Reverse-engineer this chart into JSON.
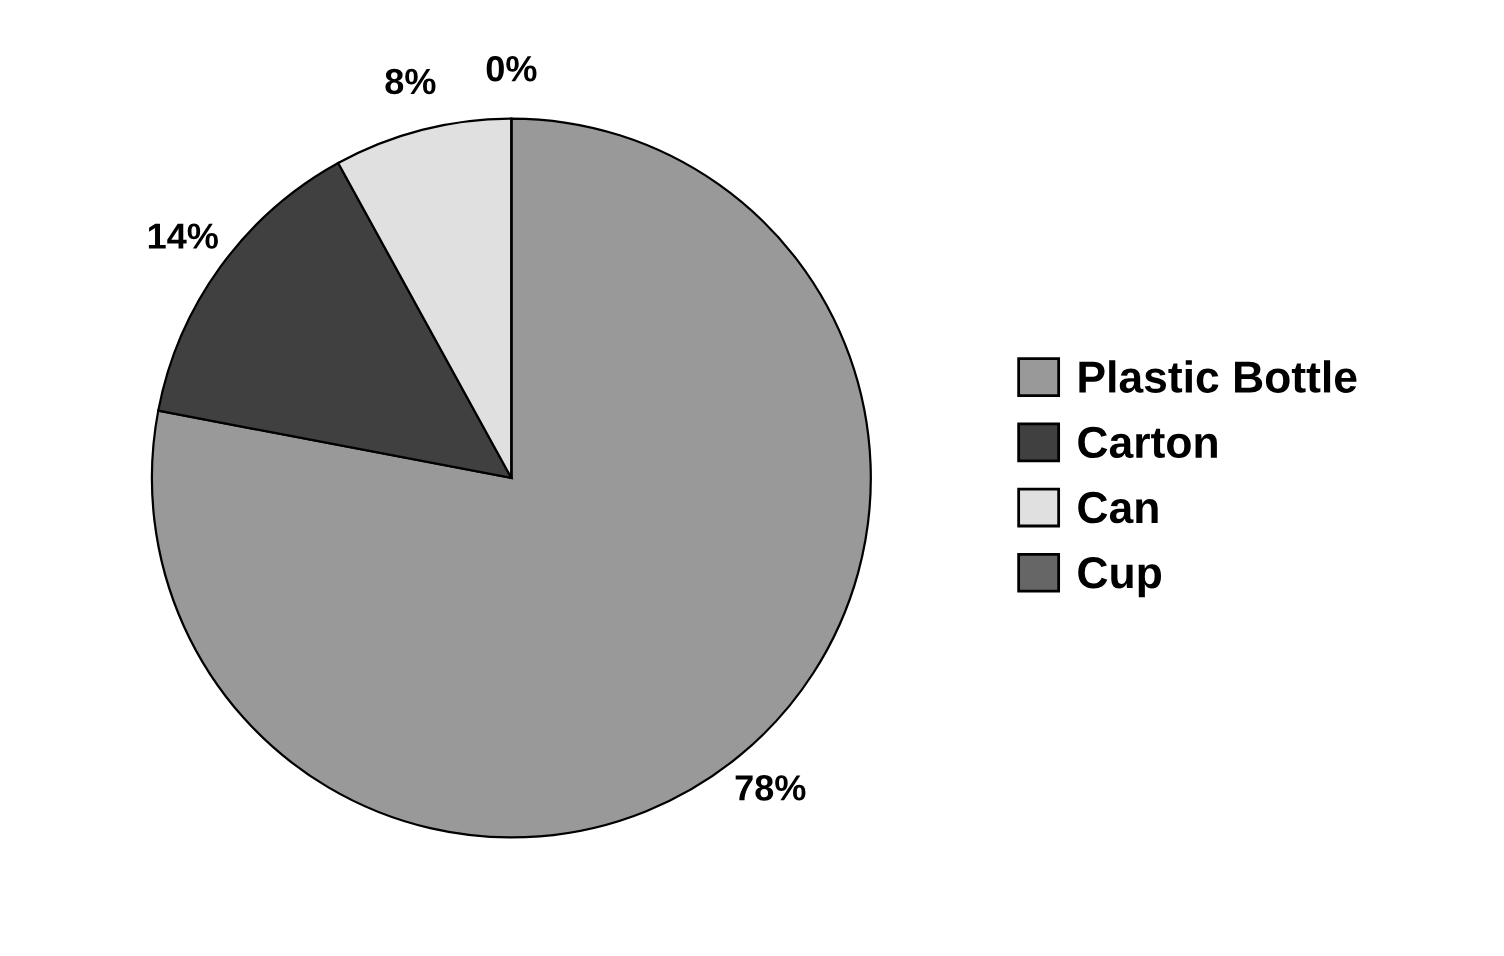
{
  "chart_data": {
    "type": "pie",
    "categories": [
      "Plastic Bottle",
      "Carton",
      "Can",
      "Cup"
    ],
    "values": [
      78,
      14,
      8,
      0
    ],
    "colors": [
      "#999999",
      "#404040",
      "#e0e0e0",
      "#666666"
    ],
    "value_labels": [
      "78%",
      "14%",
      "8%",
      "0%"
    ],
    "legend": "right"
  }
}
